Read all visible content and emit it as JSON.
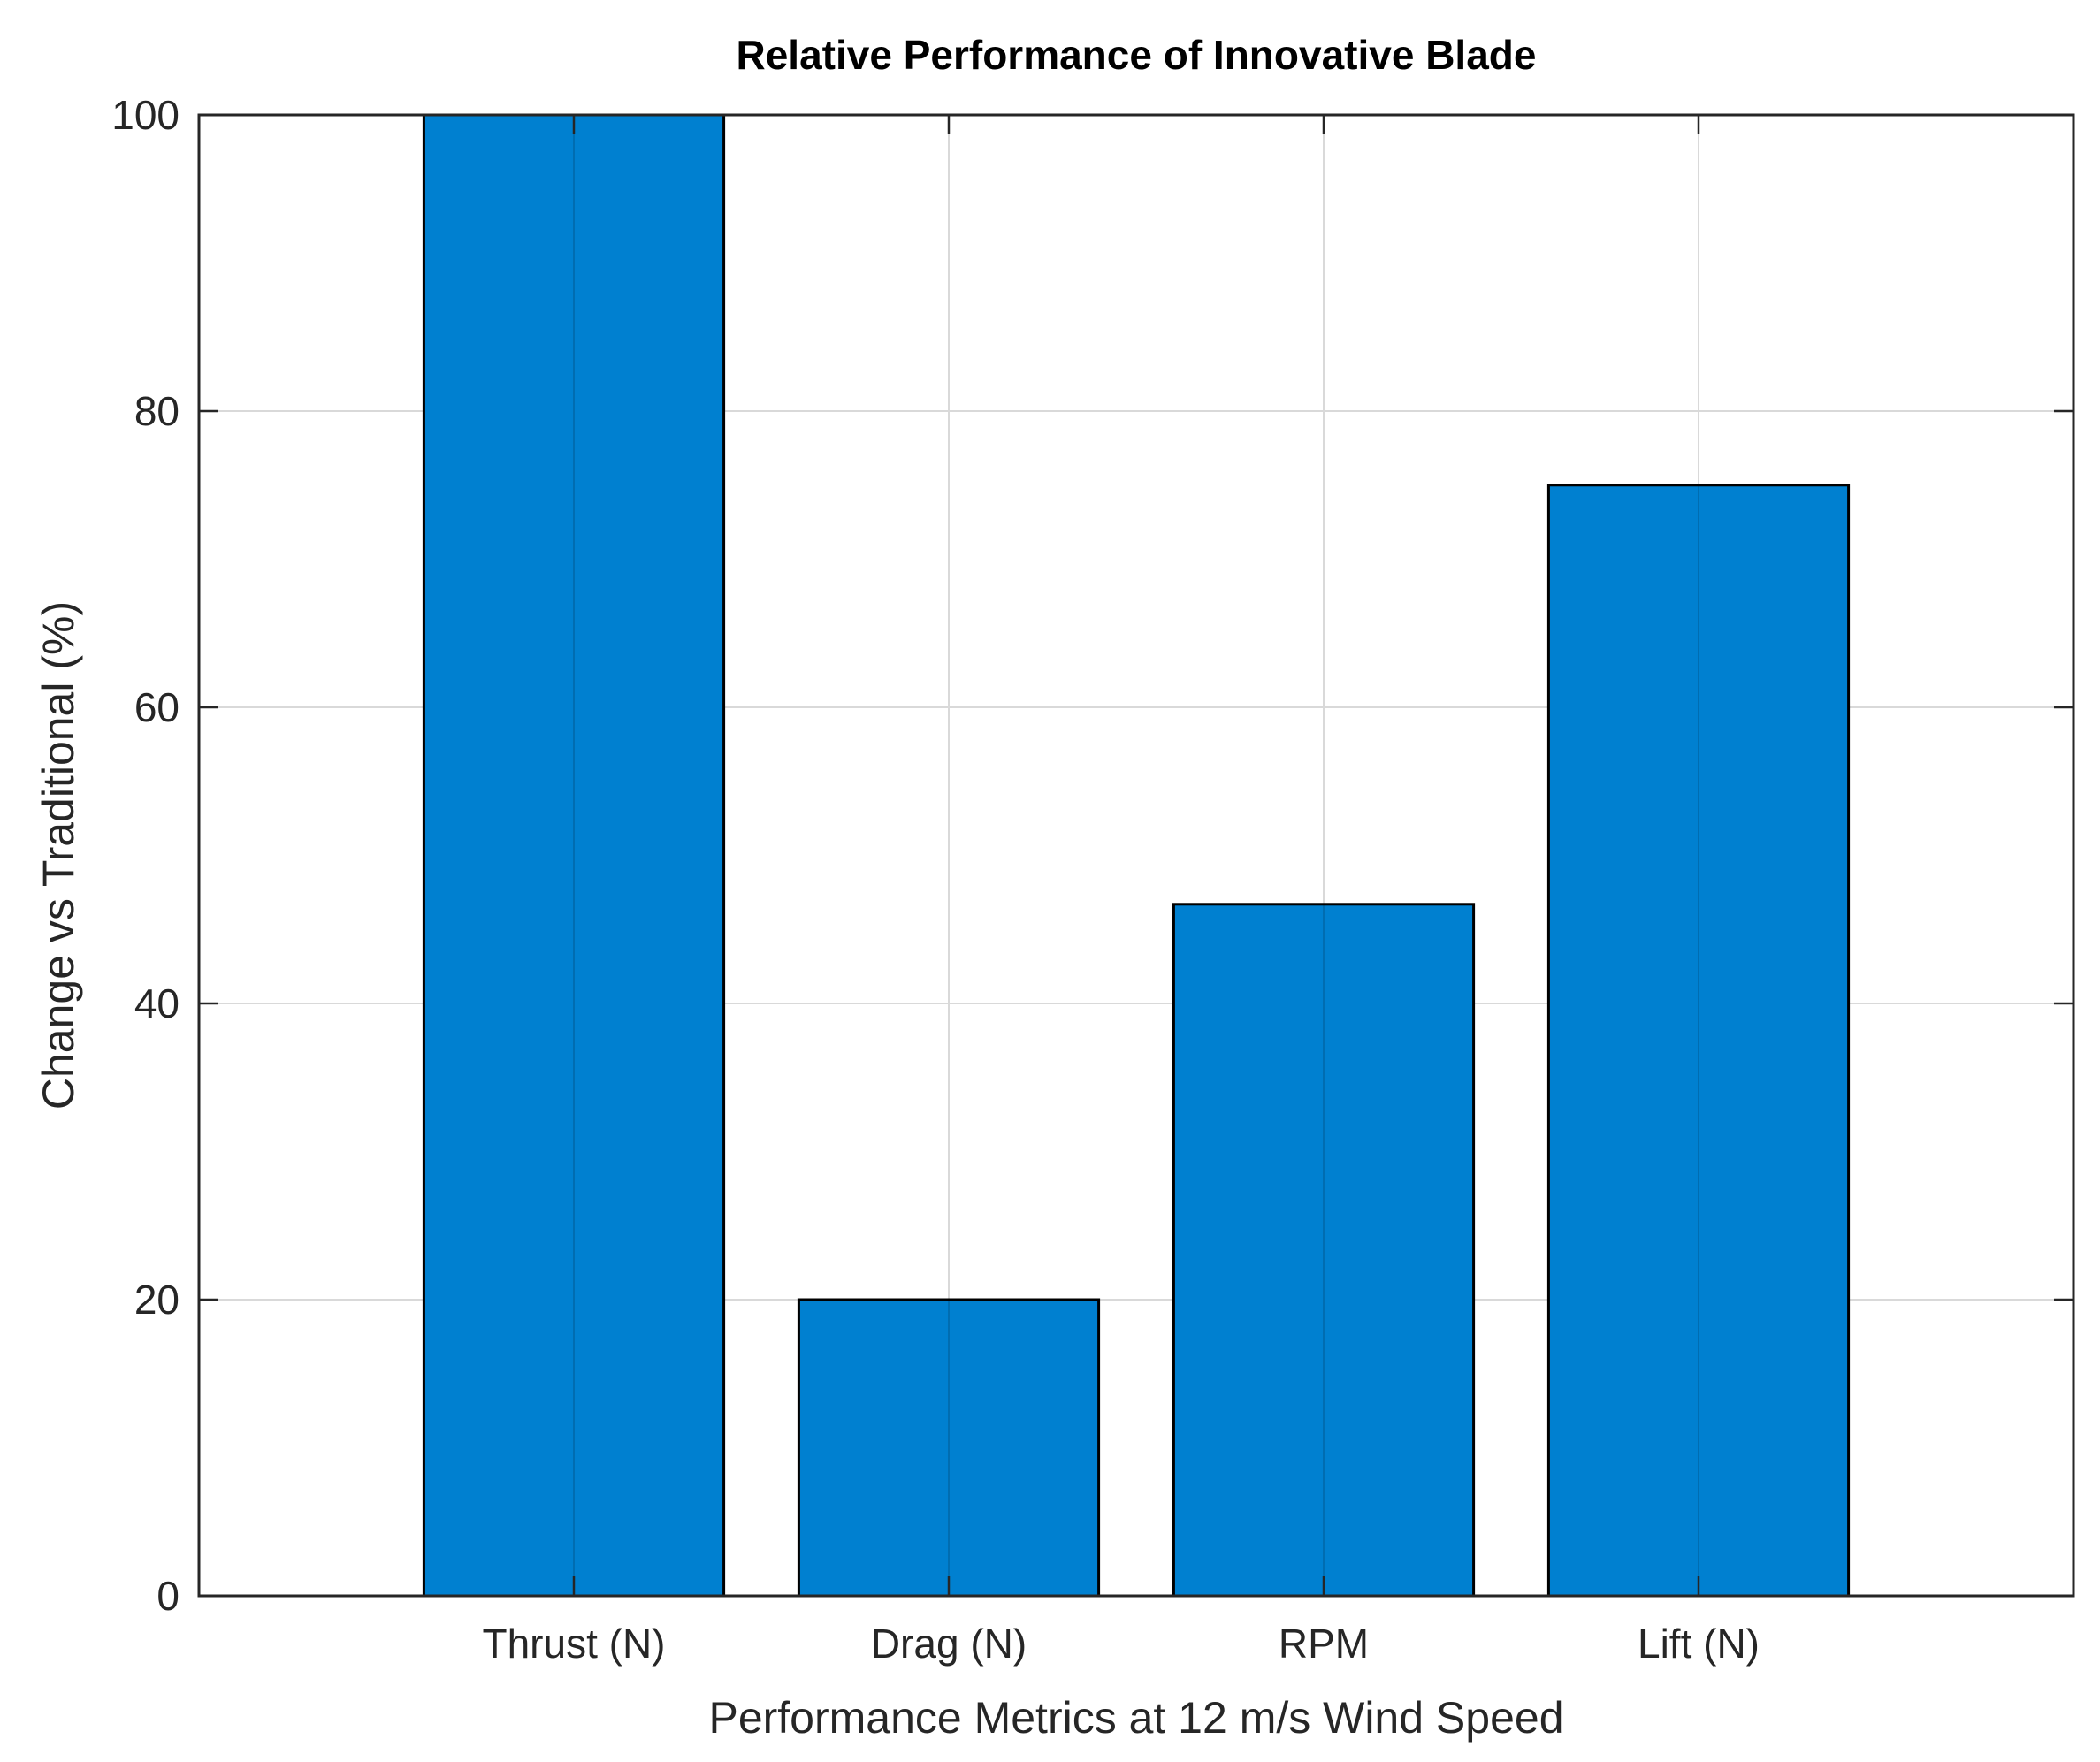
{
  "chart_data": {
    "type": "bar",
    "title": "Relative Performance of Innovative Blade",
    "xlabel": "Performance Metrics at 12 m/s Wind Speed",
    "ylabel": "Change vs Traditional (%)",
    "categories": [
      "Thrust (N)",
      "Drag (N)",
      "RPM",
      "Lift (N)"
    ],
    "values": [
      100,
      20,
      46.7,
      75
    ],
    "ylim": [
      0,
      100
    ],
    "yticks": [
      0,
      20,
      40,
      60,
      80,
      100
    ],
    "xlim": [
      0,
      5
    ],
    "grid": true,
    "bar_color": "#0080d0",
    "bar_edge_color": "#000000"
  }
}
